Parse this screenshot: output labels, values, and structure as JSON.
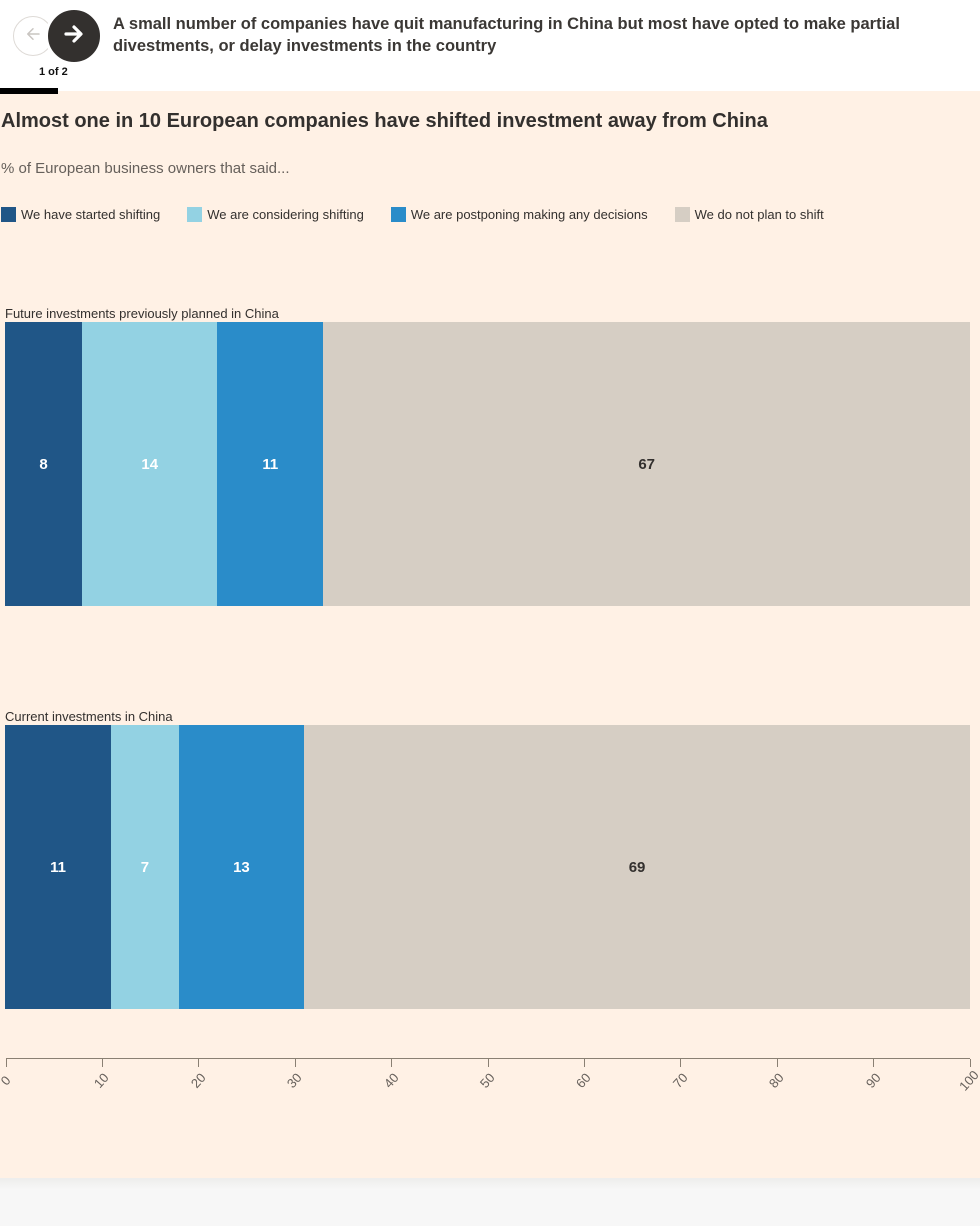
{
  "header": {
    "headline": "A small number of companies have quit manufacturing in China but most have opted to make partial divestments, or delay investments in the country",
    "pagination": "1 of 2",
    "back_icon": "arrow-left-icon",
    "forward_icon": "arrow-right-icon"
  },
  "colors": {
    "background_pink": "#fff1e5",
    "header_white": "#ffffff",
    "text_dark": "#33302e",
    "text_muted": "#66605b",
    "axis_line": "#8a8073",
    "progress_black": "#000000",
    "footer_gray": "#f7f7f7"
  },
  "chart_data": {
    "type": "bar",
    "stacked": true,
    "orientation": "horizontal",
    "title": "Almost one in 10 European companies have shifted investment away from China",
    "subtitle": "% of European business owners that said...",
    "categories": [
      "Future investments previously planned in China",
      "Current investments in China"
    ],
    "series": [
      {
        "name": "We have started shifting",
        "color": "#205687",
        "label_color": "#ffffff",
        "values": [
          8,
          11
        ]
      },
      {
        "name": "We are considering shifting",
        "color": "#93d2e3",
        "label_color": "#ffffff",
        "values": [
          14,
          7
        ]
      },
      {
        "name": "We are postponing making any decisions",
        "color": "#2a8cc9",
        "label_color": "#ffffff",
        "values": [
          11,
          13
        ]
      },
      {
        "name": "We do not plan to shift",
        "color": "#d6cec4",
        "label_color": "#33302e",
        "values": [
          67,
          69
        ]
      }
    ],
    "xlim": [
      0,
      100
    ],
    "x_ticks": [
      0,
      10,
      20,
      30,
      40,
      50,
      60,
      70,
      80,
      90,
      100
    ],
    "legend_position": "top",
    "grid": false
  }
}
